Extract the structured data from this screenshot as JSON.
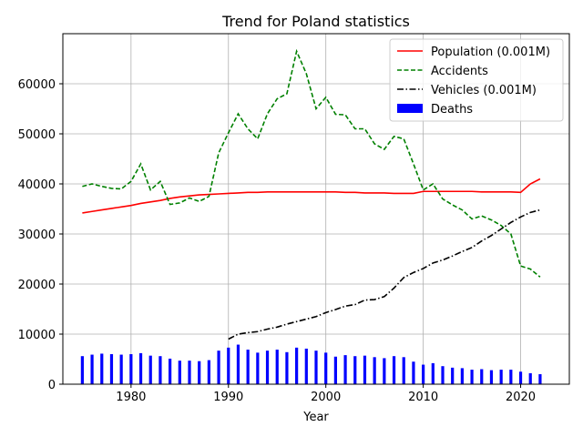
{
  "chart_data": {
    "type": "line",
    "title": "Trend for Poland statistics",
    "xlabel": "Year",
    "ylabel": "",
    "xlim": [
      1973,
      2025
    ],
    "ylim": [
      0,
      70000
    ],
    "xticks": [
      1980,
      1990,
      2000,
      2010,
      2020
    ],
    "yticks": [
      0,
      10000,
      20000,
      30000,
      40000,
      50000,
      60000
    ],
    "grid": true,
    "legend_position": "top-right",
    "series": [
      {
        "name": "Population (0.001M)",
        "kind": "line",
        "color": "#ff0000",
        "dash": "solid",
        "x": [
          1975,
          1976,
          1977,
          1978,
          1979,
          1980,
          1981,
          1982,
          1983,
          1984,
          1985,
          1986,
          1987,
          1988,
          1989,
          1990,
          1991,
          1992,
          1993,
          1994,
          1995,
          1996,
          1997,
          1998,
          1999,
          2000,
          2001,
          2002,
          2003,
          2004,
          2005,
          2006,
          2007,
          2008,
          2009,
          2010,
          2011,
          2012,
          2013,
          2014,
          2015,
          2016,
          2017,
          2018,
          2019,
          2020,
          2021,
          2022
        ],
        "values": [
          34200,
          34500,
          34800,
          35100,
          35400,
          35700,
          36100,
          36400,
          36700,
          37100,
          37400,
          37600,
          37800,
          37900,
          38000,
          38100,
          38200,
          38300,
          38300,
          38400,
          38400,
          38400,
          38400,
          38400,
          38400,
          38400,
          38400,
          38300,
          38300,
          38200,
          38200,
          38200,
          38100,
          38100,
          38100,
          38500,
          38500,
          38500,
          38500,
          38500,
          38500,
          38400,
          38400,
          38400,
          38400,
          38300,
          40000,
          41000
        ]
      },
      {
        "name": "Accidents",
        "kind": "line",
        "color": "#008000",
        "dash": "dashed",
        "x": [
          1975,
          1976,
          1977,
          1978,
          1979,
          1980,
          1981,
          1982,
          1983,
          1984,
          1985,
          1986,
          1987,
          1988,
          1989,
          1990,
          1991,
          1992,
          1993,
          1994,
          1995,
          1996,
          1997,
          1998,
          1999,
          2000,
          2001,
          2002,
          2003,
          2004,
          2005,
          2006,
          2007,
          2008,
          2009,
          2010,
          2011,
          2012,
          2013,
          2014,
          2015,
          2016,
          2017,
          2018,
          2019,
          2020,
          2021,
          2022
        ],
        "values": [
          39500,
          40000,
          39500,
          39100,
          39000,
          40500,
          44000,
          38800,
          40500,
          35900,
          36200,
          37200,
          36500,
          37500,
          46200,
          50200,
          54000,
          51000,
          49000,
          54000,
          57000,
          58000,
          66500,
          62000,
          55000,
          57300,
          53900,
          53800,
          51000,
          51000,
          48000,
          46900,
          49500,
          49000,
          44000,
          38800,
          40000,
          37000,
          35800,
          34800,
          33000,
          33600,
          32800,
          31700,
          30000,
          23600,
          23000,
          21400
        ]
      },
      {
        "name": "Vehicles (0.001M)",
        "kind": "line",
        "color": "#000000",
        "dash": "dashdot",
        "x": [
          1990,
          1991,
          1992,
          1993,
          1994,
          1995,
          1996,
          1997,
          1998,
          1999,
          2000,
          2001,
          2002,
          2003,
          2004,
          2005,
          2006,
          2007,
          2008,
          2009,
          2010,
          2011,
          2012,
          2013,
          2014,
          2015,
          2016,
          2017,
          2018,
          2019,
          2020,
          2021,
          2022
        ],
        "values": [
          9000,
          10000,
          10300,
          10500,
          11000,
          11400,
          12000,
          12500,
          13000,
          13500,
          14300,
          14900,
          15600,
          15900,
          16800,
          16900,
          17500,
          19200,
          21300,
          22300,
          23100,
          24200,
          24800,
          25600,
          26500,
          27300,
          28600,
          29700,
          31000,
          32300,
          33400,
          34300,
          34800
        ]
      },
      {
        "name": "Deaths",
        "kind": "bar",
        "color": "#0000ff",
        "x": [
          1975,
          1976,
          1977,
          1978,
          1979,
          1980,
          1981,
          1982,
          1983,
          1984,
          1985,
          1986,
          1987,
          1988,
          1989,
          1990,
          1991,
          1992,
          1993,
          1994,
          1995,
          1996,
          1997,
          1998,
          1999,
          2000,
          2001,
          2002,
          2003,
          2004,
          2005,
          2006,
          2007,
          2008,
          2009,
          2010,
          2011,
          2012,
          2013,
          2014,
          2015,
          2016,
          2017,
          2018,
          2019,
          2020,
          2021,
          2022
        ],
        "values": [
          5600,
          5900,
          6100,
          6000,
          5900,
          6000,
          6200,
          5700,
          5600,
          5100,
          4700,
          4700,
          4600,
          4800,
          6700,
          7300,
          7900,
          6900,
          6300,
          6700,
          6900,
          6400,
          7300,
          7100,
          6700,
          6300,
          5500,
          5800,
          5600,
          5700,
          5400,
          5200,
          5600,
          5400,
          4500,
          3900,
          4200,
          3600,
          3300,
          3200,
          2900,
          3000,
          2800,
          2900,
          2900,
          2500,
          2200,
          2000
        ]
      }
    ]
  }
}
